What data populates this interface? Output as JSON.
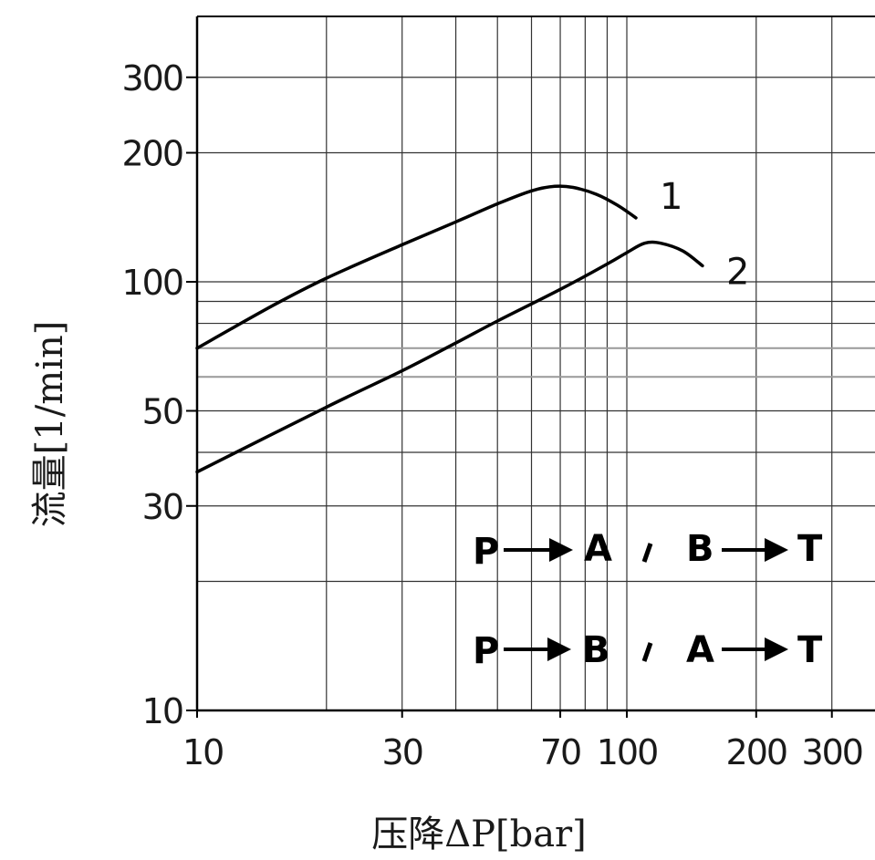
{
  "chart_data": {
    "type": "line",
    "x_scale": "log",
    "y_scale": "log",
    "xlim": [
      10,
      350
    ],
    "ylim": [
      10,
      380
    ],
    "grid": true,
    "xlabel": "压降ΔP[bar]",
    "ylabel": "流量[1/min]",
    "x_ticks": [
      {
        "value": 10,
        "label": "10"
      },
      {
        "value": 30,
        "label": "30"
      },
      {
        "value": 70,
        "label": "70"
      },
      {
        "value": 100,
        "label": "100"
      },
      {
        "value": 200,
        "label": "200"
      },
      {
        "value": 300,
        "label": "300"
      }
    ],
    "y_ticks": [
      {
        "value": 10,
        "label": "10"
      },
      {
        "value": 30,
        "label": "30"
      },
      {
        "value": 50,
        "label": "50"
      },
      {
        "value": 100,
        "label": "100"
      },
      {
        "value": 200,
        "label": "200"
      },
      {
        "value": 300,
        "label": "300"
      }
    ],
    "x_grid": [
      20,
      30,
      40,
      50,
      60,
      70,
      80,
      90,
      100,
      200,
      300
    ],
    "y_grid": [
      20,
      30,
      40,
      50,
      60,
      70,
      80,
      90,
      100,
      200,
      300
    ],
    "series": [
      {
        "name": "1",
        "x": [
          10,
          15,
          20,
          30,
          40,
          50,
          60,
          68,
          75,
          85,
          95,
          105
        ],
        "y": [
          70,
          88,
          102,
          122,
          138,
          152,
          163,
          167,
          166,
          160,
          151,
          141
        ]
      },
      {
        "name": "2",
        "x": [
          10,
          20,
          30,
          40,
          50,
          70,
          90,
          100,
          110,
          120,
          135,
          150
        ],
        "y": [
          36,
          51,
          62,
          72,
          81,
          96,
          110,
          117,
          123,
          123,
          118,
          109
        ]
      }
    ],
    "annotations": [
      {
        "from": "P",
        "to": "A",
        "from2": "B",
        "to2": "T"
      },
      {
        "from": "P",
        "to": "B",
        "from2": "A",
        "to2": "T"
      }
    ]
  }
}
